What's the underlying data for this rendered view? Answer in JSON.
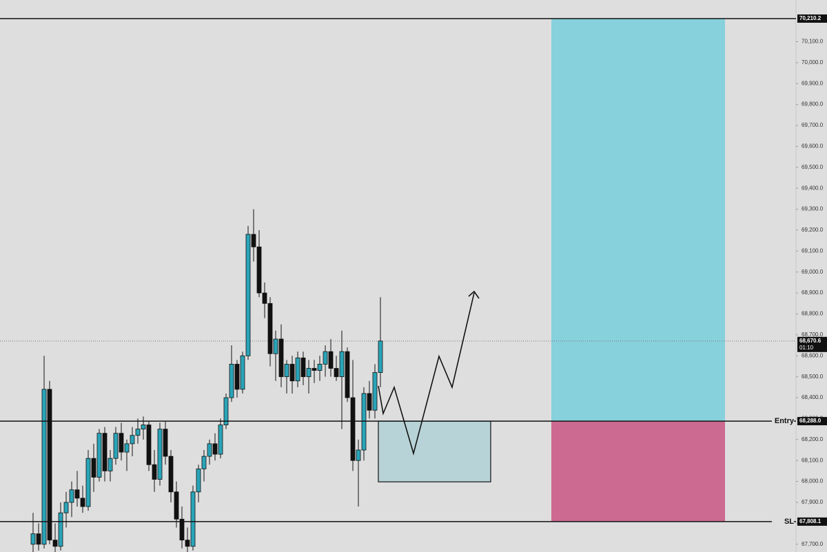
{
  "chart_data": {
    "type": "candlestick",
    "up_color": "#2aa4b8",
    "down_color": "#111111",
    "ylim": [
      67663,
      70299
    ],
    "yticks": [
      {
        "value": 67700,
        "label": "67,700.0"
      },
      {
        "value": 67800,
        "label": "67,800.0"
      },
      {
        "value": 67900,
        "label": "67,900.0"
      },
      {
        "value": 68000,
        "label": "68,000.0"
      },
      {
        "value": 68100,
        "label": "68,100.0"
      },
      {
        "value": 68200,
        "label": "68,200.0"
      },
      {
        "value": 68300,
        "label": "68,300.0"
      },
      {
        "value": 68400,
        "label": "68,400.0"
      },
      {
        "value": 68500,
        "label": "68,500.0"
      },
      {
        "value": 68600,
        "label": "68,600.0"
      },
      {
        "value": 68700,
        "label": "68,700.0"
      },
      {
        "value": 68800,
        "label": "68,800.0"
      },
      {
        "value": 68900,
        "label": "68,900.0"
      },
      {
        "value": 69000,
        "label": "69,000.0"
      },
      {
        "value": 69100,
        "label": "69,100.0"
      },
      {
        "value": 69200,
        "label": "69,200.0"
      },
      {
        "value": 69300,
        "label": "69,300.0"
      },
      {
        "value": 69400,
        "label": "69,400.0"
      },
      {
        "value": 69500,
        "label": "69,500.0"
      },
      {
        "value": 69600,
        "label": "69,600.0"
      },
      {
        "value": 69700,
        "label": "69,700.0"
      },
      {
        "value": 69800,
        "label": "69,800.0"
      },
      {
        "value": 69900,
        "label": "69,900.0"
      },
      {
        "value": 70000,
        "label": "70,000.0"
      },
      {
        "value": 70100,
        "label": "70,100.0"
      }
    ],
    "open": [
      67700,
      67750,
      67700,
      68440,
      67720,
      67690,
      67850,
      67900,
      67960,
      67920,
      67880,
      68110,
      68020,
      68230,
      68050,
      68110,
      68230,
      68140,
      68180,
      68220,
      68250,
      68270,
      68080,
      68010,
      68250,
      68120,
      67950,
      67820,
      67720,
      67690,
      67950,
      68060,
      68120,
      68180,
      68130,
      68270,
      68400,
      68560,
      68440,
      68600,
      69180,
      69120,
      68900,
      68850,
      68610,
      68680,
      68500,
      68560,
      68480,
      68590,
      68500,
      68540,
      68530,
      68560,
      68620,
      68540,
      68500,
      68620,
      68400,
      68100,
      68150,
      68420,
      68340,
      68520
    ],
    "high": [
      67850,
      67800,
      68600,
      68480,
      67800,
      67900,
      67950,
      68000,
      68050,
      67980,
      68150,
      68180,
      68250,
      68260,
      68150,
      68260,
      68280,
      68200,
      68260,
      68300,
      68310,
      68290,
      68150,
      68280,
      68290,
      68150,
      68000,
      67880,
      67780,
      67980,
      68080,
      68150,
      68200,
      68230,
      68300,
      68420,
      68650,
      68580,
      68620,
      69220,
      69300,
      69200,
      68950,
      68880,
      68720,
      68750,
      68580,
      68600,
      68620,
      68620,
      68580,
      68580,
      68600,
      68650,
      68680,
      68600,
      68720,
      68640,
      68580,
      68200,
      68450,
      68480,
      68560,
      68880
    ],
    "low": [
      67660,
      67670,
      67680,
      67700,
      67660,
      67670,
      67780,
      67830,
      67880,
      67850,
      67860,
      67950,
      68000,
      68000,
      68000,
      68080,
      68100,
      68050,
      68120,
      68180,
      68200,
      68050,
      67950,
      67980,
      68080,
      67900,
      67780,
      67680,
      67660,
      67670,
      67900,
      68000,
      68080,
      68100,
      68110,
      68250,
      68380,
      68400,
      68420,
      68580,
      69050,
      68880,
      68780,
      68550,
      68480,
      68450,
      68420,
      68420,
      68450,
      68460,
      68420,
      68470,
      68480,
      68500,
      68500,
      68480,
      68250,
      68380,
      68050,
      67880,
      68100,
      68300,
      68300,
      68450
    ],
    "close": [
      67750,
      67700,
      68440,
      67720,
      67690,
      67850,
      67900,
      67960,
      67920,
      67880,
      68110,
      68020,
      68230,
      68050,
      68110,
      68230,
      68140,
      68180,
      68220,
      68250,
      68270,
      68080,
      68010,
      68250,
      68120,
      67950,
      67820,
      67720,
      67690,
      67950,
      68060,
      68120,
      68180,
      68130,
      68270,
      68400,
      68560,
      68440,
      68600,
      69180,
      69120,
      68900,
      68850,
      68610,
      68680,
      68500,
      68560,
      68480,
      68590,
      68500,
      68540,
      68530,
      68560,
      68620,
      68540,
      68500,
      68620,
      68400,
      68100,
      68150,
      68420,
      68340,
      68520,
      68670.6
    ],
    "levels": [
      {
        "value": 70210.2,
        "label": "70,210.2"
      },
      {
        "value": 68288.0,
        "label": "68,288.0",
        "name": "Entry"
      },
      {
        "value": 67808.1,
        "label": "67,808.1",
        "name": "SL"
      }
    ],
    "last_price": {
      "value": 68670.6,
      "label": "68,670.6",
      "countdown": "01:10"
    },
    "zone": {
      "high": 68288.0,
      "low": 67998
    },
    "target_color": "#87d1dc",
    "stop_color": "#cc6a91",
    "zone_color": "#b7d3d7"
  }
}
